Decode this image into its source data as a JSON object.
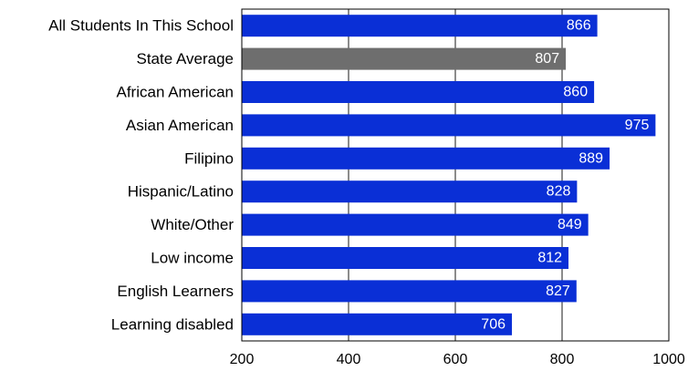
{
  "chart_data": {
    "type": "bar",
    "orientation": "horizontal",
    "categories": [
      "All Students In This School",
      "State Average",
      "African American",
      "Asian American",
      "Filipino",
      "Hispanic/Latino",
      "White/Other",
      "Low income",
      "English Learners",
      "Learning disabled"
    ],
    "values": [
      866,
      807,
      860,
      975,
      889,
      828,
      849,
      812,
      827,
      706
    ],
    "value_labels": [
      "866",
      "807",
      "860",
      "975",
      "889",
      "828",
      "849",
      "812",
      "827",
      "706"
    ],
    "xlim": [
      200,
      1000
    ],
    "xticks": [
      200,
      400,
      600,
      800,
      1000
    ],
    "xtick_labels": [
      "200",
      "400",
      "600",
      "800",
      "1000"
    ],
    "grid": "vertical",
    "colors": {
      "bar": "#0a2fd6",
      "highlight_bar": "#6e6e6e",
      "grid": "#8c8c8c",
      "frame": "#000000"
    },
    "highlight_category": "State Average",
    "title": "",
    "xlabel": "",
    "ylabel": ""
  }
}
